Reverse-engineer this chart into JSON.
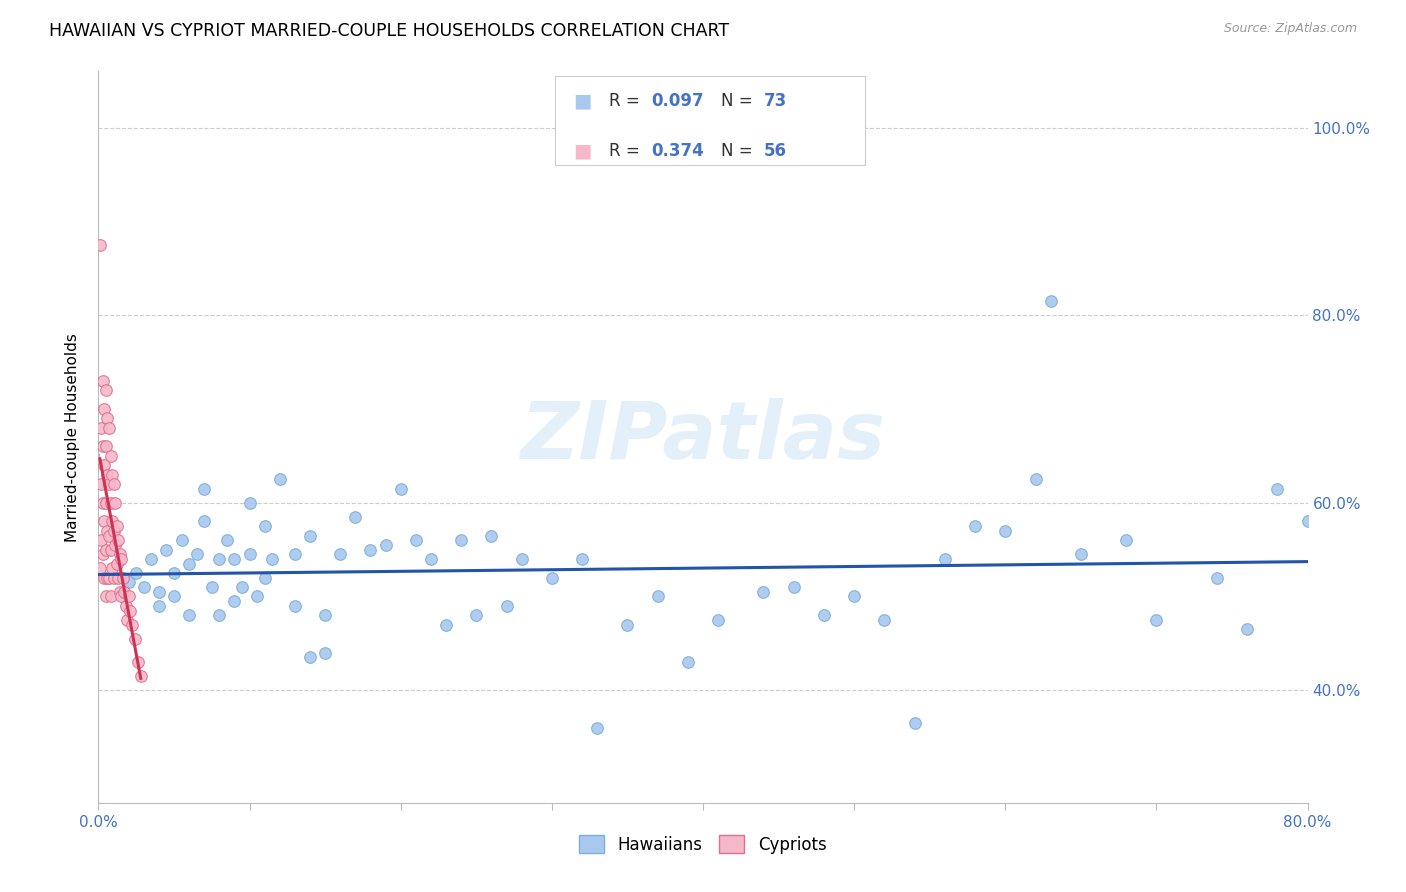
{
  "title": "HAWAIIAN VS CYPRIOT MARRIED-COUPLE HOUSEHOLDS CORRELATION CHART",
  "source": "Source: ZipAtlas.com",
  "ylabel": "Married-couple Households",
  "watermark": "ZIPatlas",
  "tick_color": "#4472c4",
  "grid_color": "#cccccc",
  "blue_dot_color": "#a8c8f0",
  "blue_dot_edge": "#7bafd4",
  "pink_dot_color": "#f5b8c8",
  "pink_dot_edge": "#e07090",
  "blue_line_color": "#2255aa",
  "pink_line_color": "#cc3355",
  "xmin": 0.0,
  "xmax": 0.8,
  "ymin": 0.28,
  "ymax": 1.06,
  "xtick_positions": [
    0.0,
    0.1,
    0.2,
    0.3,
    0.4,
    0.5,
    0.6,
    0.7,
    0.8
  ],
  "xtick_labels": [
    "0.0%",
    "",
    "",
    "",
    "",
    "",
    "",
    "",
    "80.0%"
  ],
  "ytick_positions": [
    0.4,
    0.6,
    0.8,
    1.0
  ],
  "ytick_labels": [
    "40.0%",
    "60.0%",
    "80.0%",
    "100.0%"
  ],
  "hawaiians_x": [
    0.02,
    0.025,
    0.03,
    0.035,
    0.04,
    0.04,
    0.045,
    0.05,
    0.05,
    0.055,
    0.06,
    0.06,
    0.065,
    0.07,
    0.07,
    0.075,
    0.08,
    0.08,
    0.085,
    0.09,
    0.09,
    0.095,
    0.1,
    0.1,
    0.105,
    0.11,
    0.11,
    0.115,
    0.12,
    0.13,
    0.13,
    0.14,
    0.14,
    0.15,
    0.15,
    0.16,
    0.17,
    0.18,
    0.19,
    0.2,
    0.21,
    0.22,
    0.23,
    0.24,
    0.25,
    0.26,
    0.27,
    0.28,
    0.3,
    0.32,
    0.33,
    0.35,
    0.37,
    0.39,
    0.41,
    0.44,
    0.46,
    0.48,
    0.5,
    0.52,
    0.54,
    0.56,
    0.58,
    0.6,
    0.62,
    0.63,
    0.65,
    0.68,
    0.7,
    0.74,
    0.76,
    0.78,
    0.8
  ],
  "hawaiians_y": [
    0.515,
    0.525,
    0.51,
    0.54,
    0.505,
    0.49,
    0.55,
    0.5,
    0.525,
    0.56,
    0.48,
    0.535,
    0.545,
    0.615,
    0.58,
    0.51,
    0.54,
    0.48,
    0.56,
    0.54,
    0.495,
    0.51,
    0.6,
    0.545,
    0.5,
    0.575,
    0.52,
    0.54,
    0.625,
    0.545,
    0.49,
    0.435,
    0.565,
    0.44,
    0.48,
    0.545,
    0.585,
    0.55,
    0.555,
    0.615,
    0.56,
    0.54,
    0.47,
    0.56,
    0.48,
    0.565,
    0.49,
    0.54,
    0.52,
    0.54,
    0.36,
    0.47,
    0.5,
    0.43,
    0.475,
    0.505,
    0.51,
    0.48,
    0.5,
    0.475,
    0.365,
    0.54,
    0.575,
    0.57,
    0.625,
    0.815,
    0.545,
    0.56,
    0.475,
    0.52,
    0.465,
    0.615,
    0.58
  ],
  "cypriots_x": [
    0.001,
    0.001,
    0.002,
    0.002,
    0.002,
    0.003,
    0.003,
    0.003,
    0.003,
    0.004,
    0.004,
    0.004,
    0.004,
    0.005,
    0.005,
    0.005,
    0.005,
    0.005,
    0.006,
    0.006,
    0.006,
    0.006,
    0.007,
    0.007,
    0.007,
    0.007,
    0.008,
    0.008,
    0.008,
    0.008,
    0.009,
    0.009,
    0.009,
    0.01,
    0.01,
    0.01,
    0.011,
    0.011,
    0.012,
    0.012,
    0.013,
    0.013,
    0.014,
    0.014,
    0.015,
    0.015,
    0.016,
    0.017,
    0.018,
    0.019,
    0.02,
    0.021,
    0.022,
    0.024,
    0.026,
    0.028
  ],
  "cypriots_y": [
    0.875,
    0.53,
    0.68,
    0.62,
    0.56,
    0.73,
    0.66,
    0.6,
    0.545,
    0.7,
    0.64,
    0.58,
    0.52,
    0.72,
    0.66,
    0.6,
    0.55,
    0.5,
    0.69,
    0.63,
    0.57,
    0.52,
    0.68,
    0.62,
    0.565,
    0.52,
    0.65,
    0.6,
    0.55,
    0.5,
    0.63,
    0.58,
    0.53,
    0.62,
    0.57,
    0.52,
    0.6,
    0.555,
    0.575,
    0.535,
    0.56,
    0.52,
    0.545,
    0.505,
    0.54,
    0.5,
    0.52,
    0.505,
    0.49,
    0.475,
    0.5,
    0.485,
    0.47,
    0.455,
    0.43,
    0.415
  ],
  "dot_size": 70
}
